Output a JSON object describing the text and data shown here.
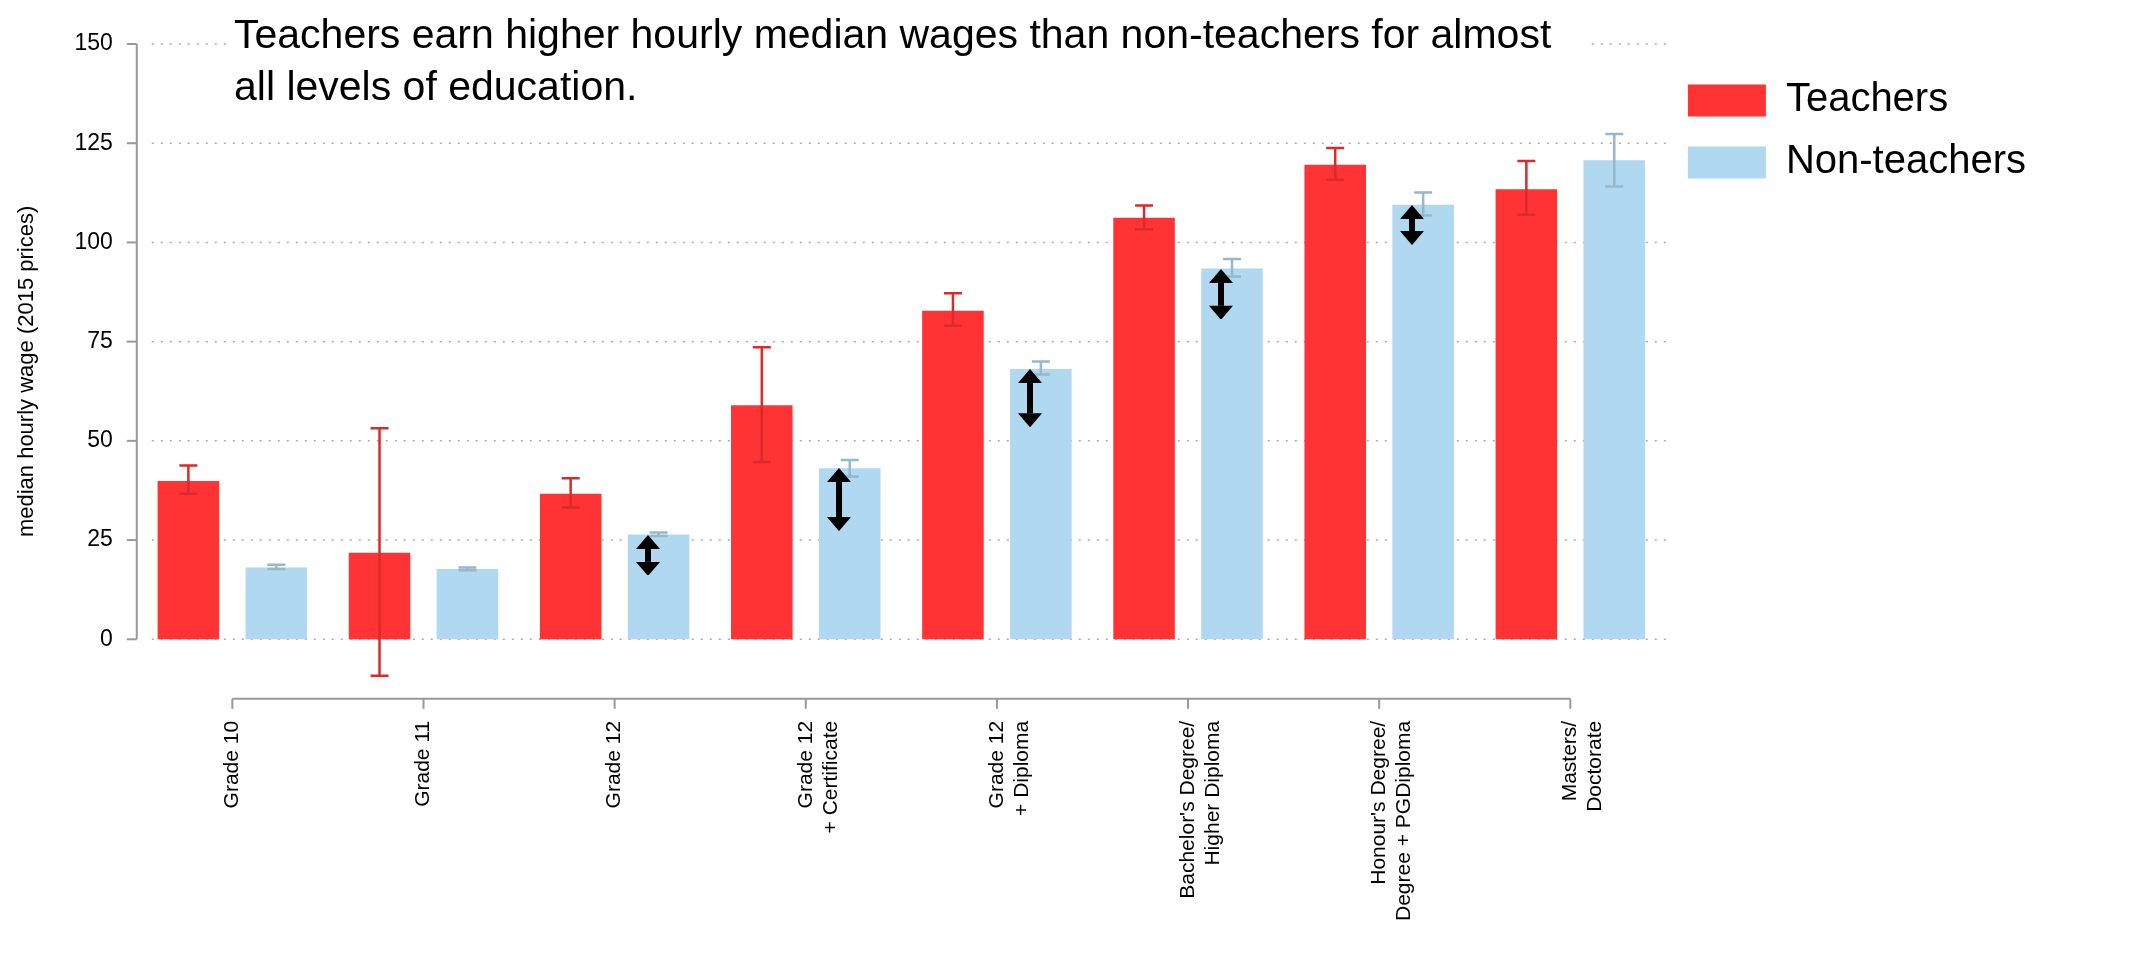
{
  "chart_data": {
    "type": "bar",
    "title": "Teachers earn higher hourly  median wages than non-teachers for almost all levels of education.",
    "ylabel": "median hourly wage (2015 prices)",
    "categories": [
      "Grade 10",
      "Grade 11",
      "Grade 12",
      "Grade 12\n+ Certificate",
      "Grade 12\n+ Diploma",
      "Bachelor's Degree/\nHigher Diploma",
      "Honour's Degree/\nDegree + PGDiploma",
      "Masters/\nDoctorate"
    ],
    "series": [
      {
        "name": "Teachers",
        "color": "#ff3333",
        "values": [
          39.9,
          21.8,
          36.7,
          59,
          82.8,
          106.2,
          119.6,
          113.4
        ],
        "errors": [
          [
            36.7,
            43.8
          ],
          [
            -9.2,
            53.2
          ],
          [
            33.2,
            40.6
          ],
          [
            44.7,
            73.6
          ],
          [
            79,
            87.2
          ],
          [
            103.3,
            109.3
          ],
          [
            115.8,
            123.8
          ],
          [
            107,
            120.5
          ]
        ]
      },
      {
        "name": "Non-teachers",
        "color": "#b0d8f0",
        "values": [
          18.1,
          17.7,
          26.4,
          43.1,
          68.1,
          93.4,
          109.5,
          120.7
        ],
        "errors": [
          [
            17.7,
            18.8
          ],
          [
            17.4,
            18.1
          ],
          [
            26,
            26.9
          ],
          [
            41,
            45.2
          ],
          [
            66.7,
            70
          ],
          [
            91.4,
            95.8
          ],
          [
            106.8,
            112.6
          ],
          [
            114.1,
            127.3
          ]
        ]
      }
    ],
    "ylim": [
      -15,
      150
    ],
    "yticks": [
      0,
      25,
      50,
      75,
      100,
      125,
      150
    ],
    "grid": "y",
    "legend": "top right"
  }
}
